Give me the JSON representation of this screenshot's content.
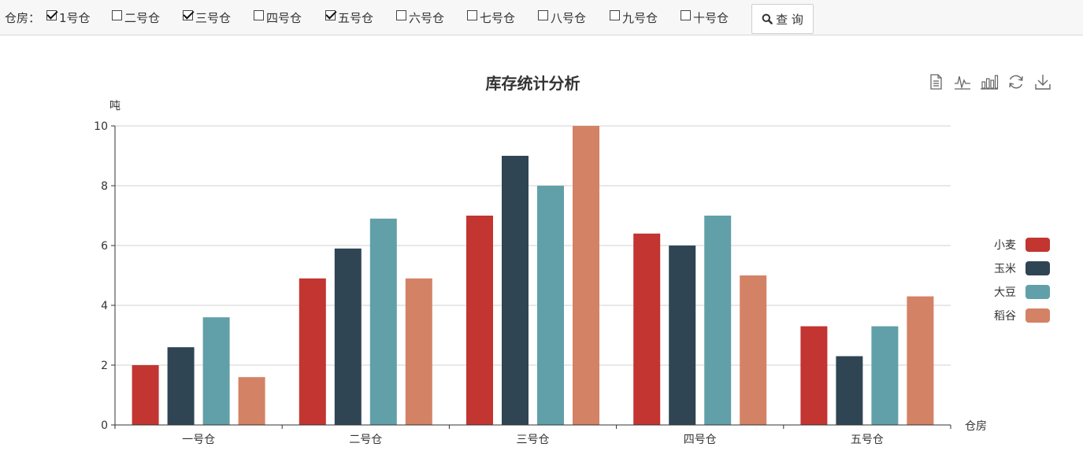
{
  "filter": {
    "label": "仓房：",
    "options": [
      {
        "label": "1号仓",
        "checked": true
      },
      {
        "label": "二号仓",
        "checked": false
      },
      {
        "label": "三号仓",
        "checked": true
      },
      {
        "label": "四号仓",
        "checked": false
      },
      {
        "label": "五号仓",
        "checked": true
      },
      {
        "label": "六号仓",
        "checked": false
      },
      {
        "label": "七号仓",
        "checked": false
      },
      {
        "label": "八号仓",
        "checked": false
      },
      {
        "label": "九号仓",
        "checked": false
      },
      {
        "label": "十号仓",
        "checked": false
      }
    ],
    "query_label": "查 询",
    "query_icon": "search-icon"
  },
  "toolbox": [
    "data-view-icon",
    "line-chart-icon",
    "bar-chart-icon",
    "refresh-icon",
    "download-icon"
  ],
  "chart_data": {
    "type": "bar",
    "title": "库存统计分析",
    "xlabel": "仓房",
    "ylabel": "吨",
    "categories": [
      "一号仓",
      "二号仓",
      "三号仓",
      "四号仓",
      "五号仓"
    ],
    "ylim": [
      0,
      10
    ],
    "yticks": [
      "0",
      "2",
      "4",
      "6",
      "8",
      "10"
    ],
    "grid": true,
    "legend_position": "right",
    "series": [
      {
        "name": "小麦",
        "color": "#c23531",
        "values": [
          2.0,
          4.9,
          7.0,
          6.4,
          3.3
        ]
      },
      {
        "name": "玉米",
        "color": "#2f4554",
        "values": [
          2.6,
          5.9,
          9.0,
          6.0,
          2.3
        ]
      },
      {
        "name": "大豆",
        "color": "#61a0a8",
        "values": [
          3.6,
          6.9,
          8.0,
          7.0,
          3.3
        ]
      },
      {
        "name": "稻谷",
        "color": "#d48265",
        "values": [
          1.6,
          4.9,
          10.0,
          5.0,
          4.3
        ]
      }
    ]
  }
}
